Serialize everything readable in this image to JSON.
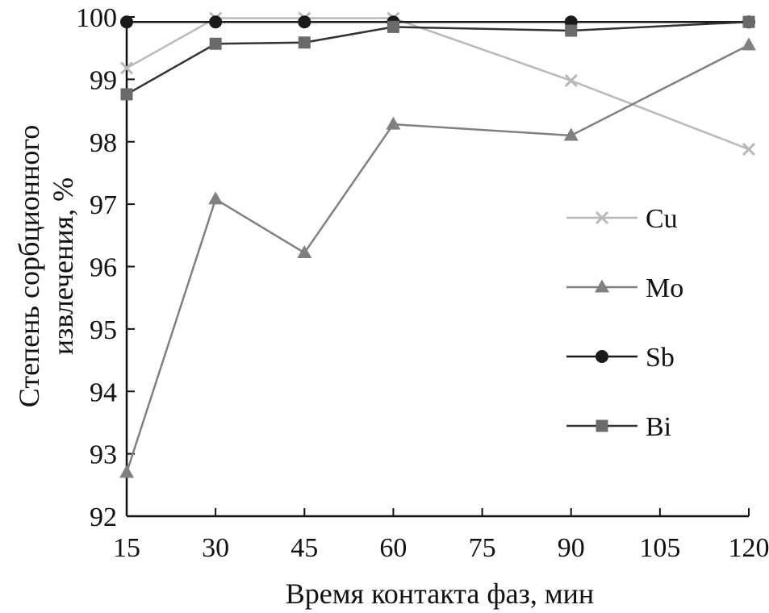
{
  "chart_data": {
    "type": "line",
    "xlabel": "Время контакта фаз, мин",
    "ylabel_lines": [
      "Степень сорбционного",
      "извлечения, %"
    ],
    "x_ticks": [
      15,
      30,
      45,
      60,
      75,
      90,
      105,
      120
    ],
    "y_ticks": [
      92,
      93,
      94,
      95,
      96,
      97,
      98,
      99,
      100
    ],
    "xlim": [
      15,
      120
    ],
    "ylim": [
      92,
      100
    ],
    "grid": false,
    "legend_position": "right",
    "series": [
      {
        "name": "Cu",
        "marker": "x",
        "color": "#b9b9b9",
        "x": [
          15,
          30,
          45,
          60,
          90,
          120
        ],
        "y": [
          99.18,
          99.98,
          99.98,
          99.98,
          98.98,
          97.88
        ]
      },
      {
        "name": "Mo",
        "marker": "triangle",
        "color": "#808080",
        "x": [
          15,
          30,
          45,
          60,
          90,
          120
        ],
        "y": [
          92.7,
          97.08,
          96.22,
          98.28,
          98.1,
          99.55
        ]
      },
      {
        "name": "Sb",
        "marker": "circle",
        "color": "#1a1a1a",
        "x": [
          15,
          30,
          45,
          60,
          90,
          120
        ],
        "y": [
          99.92,
          99.92,
          99.92,
          99.92,
          99.92,
          99.92
        ]
      },
      {
        "name": "Bi",
        "marker": "square",
        "color": "#333333",
        "marker_color": "#6a6a6a",
        "x": [
          15,
          30,
          45,
          60,
          90,
          120
        ],
        "y": [
          98.76,
          99.57,
          99.59,
          99.84,
          99.78,
          99.92
        ]
      }
    ]
  }
}
